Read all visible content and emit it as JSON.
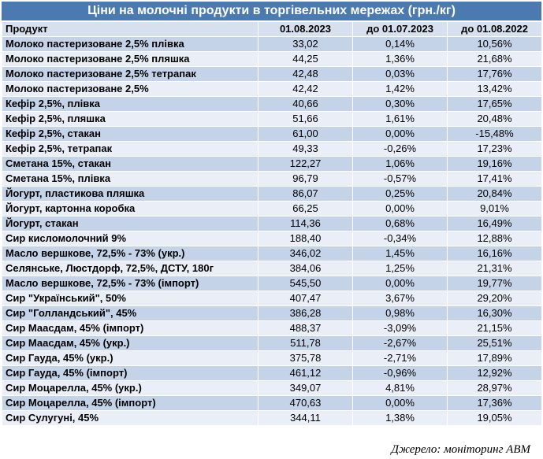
{
  "title": "Ціни на молочні продукти в торгівельних мережах (грн./кг)",
  "columns": [
    "Продукт",
    "01.08.2023",
    "до 01.07.2023",
    "до 01.08.2022"
  ],
  "rows": [
    {
      "name": "Молоко пастеризоване 2,5% плівка",
      "price": "33,02",
      "mom": "0,14%",
      "yoy": "10,56%"
    },
    {
      "name": "Молоко пастеризоване 2,5% пляшка",
      "price": "44,25",
      "mom": "1,36%",
      "yoy": "21,68%"
    },
    {
      "name": "Молоко пастеризоване 2,5% тетрапак",
      "price": "42,48",
      "mom": "0,03%",
      "yoy": "17,76%"
    },
    {
      "name": "Молоко пастеризоване 2,5%",
      "price": "42,42",
      "mom": "1,42%",
      "yoy": "13,42%"
    },
    {
      "name": "Кефір 2,5%, плівка",
      "price": "40,66",
      "mom": "0,30%",
      "yoy": "17,65%"
    },
    {
      "name": "Кефір 2,5%, пляшка",
      "price": "51,66",
      "mom": "1,61%",
      "yoy": "20,48%"
    },
    {
      "name": "Кефір 2,5%, стакан",
      "price": "61,00",
      "mom": "0,00%",
      "yoy": "-15,48%"
    },
    {
      "name": "Кефір 2,5%, тетрапак",
      "price": "49,33",
      "mom": "-0,26%",
      "yoy": "17,23%"
    },
    {
      "name": "Сметана 15%, стакан",
      "price": "122,27",
      "mom": "1,06%",
      "yoy": "19,16%"
    },
    {
      "name": "Сметана 15%, плівка",
      "price": "96,79",
      "mom": "-0,57%",
      "yoy": "17,41%"
    },
    {
      "name": "Йогурт, пластикова пляшка",
      "price": "86,07",
      "mom": "0,25%",
      "yoy": "20,84%"
    },
    {
      "name": "Йогурт, картонна коробка",
      "price": "66,25",
      "mom": "0,00%",
      "yoy": "9,01%"
    },
    {
      "name": "Йогурт, стакан",
      "price": "114,36",
      "mom": "0,68%",
      "yoy": "16,49%"
    },
    {
      "name": "Сир кисломолочний 9%",
      "price": "188,40",
      "mom": "-0,34%",
      "yoy": "12,88%"
    },
    {
      "name": "Масло вершкове, 72,5% - 73% (укр.)",
      "price": "346,02",
      "mom": "1,45%",
      "yoy": "16,16%"
    },
    {
      "name": "Селянське, Люстдорф, 72,5%, ДСТУ, 180г",
      "price": "384,06",
      "mom": "1,25%",
      "yoy": "21,31%"
    },
    {
      "name": "Масло вершкове, 72,5% - 73% (імпорт)",
      "price": "545,50",
      "mom": "0,00%",
      "yoy": "19,77%"
    },
    {
      "name": "Сир \"Український\", 50%",
      "price": "407,47",
      "mom": "3,67%",
      "yoy": "29,20%"
    },
    {
      "name": "Сир \"Голландський\", 45%",
      "price": "386,28",
      "mom": "0,98%",
      "yoy": "16,30%"
    },
    {
      "name": "Сир Маасдам, 45% (імпорт)",
      "price": "488,37",
      "mom": "-3,09%",
      "yoy": "21,15%"
    },
    {
      "name": "Сир Маасдам, 45% (укр.)",
      "price": "511,78",
      "mom": "-2,67%",
      "yoy": "25,51%"
    },
    {
      "name": "Сир Гауда, 45% (укр.)",
      "price": "375,78",
      "mom": "-2,71%",
      "yoy": "17,89%"
    },
    {
      "name": "Сир Гауда, 45% (імпорт)",
      "price": "461,12",
      "mom": "-0,96%",
      "yoy": "12,92%"
    },
    {
      "name": "Сир Моцарелла, 45% (укр.)",
      "price": "349,07",
      "mom": "4,81%",
      "yoy": "28,97%"
    },
    {
      "name": "Сир Моцарелла, 45% (імпорт)",
      "price": "470,63",
      "mom": "0,00%",
      "yoy": "17,36%"
    },
    {
      "name": "Сир Сулугуні, 45%",
      "price": "344,11",
      "mom": "1,38%",
      "yoy": "19,05%"
    }
  ],
  "source": "Джерело: моніторинг АВМ",
  "colors": {
    "title_bg": "#4a7ab0",
    "header_bg": "#d6e0ee",
    "row_dark": "#c5d3e8",
    "row_light": "#e9eef7"
  }
}
